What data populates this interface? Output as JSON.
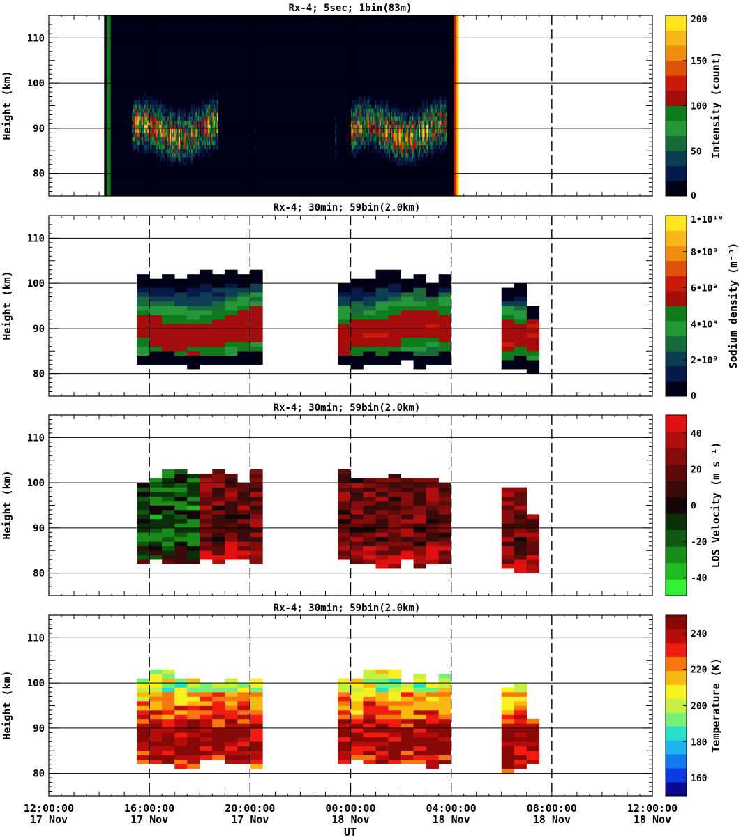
{
  "chart_data": {
    "type": "heatmap",
    "xlabel": "UT",
    "x_ticks": [
      {
        "time": "12:00:00",
        "date": "17 Nov"
      },
      {
        "time": "16:00:00",
        "date": "17 Nov"
      },
      {
        "time": "20:00:00",
        "date": "17 Nov"
      },
      {
        "time": "00:00:00",
        "date": "18 Nov"
      },
      {
        "time": "04:00:00",
        "date": "18 Nov"
      },
      {
        "time": "08:00:00",
        "date": "18 Nov"
      },
      {
        "time": "12:00:00",
        "date": "18 Nov"
      }
    ],
    "xlim_hours_ut": [
      12,
      36
    ],
    "grid": "dashed vertical lines every 4 h, horizontal lines every 10 km",
    "panels": [
      {
        "title": "Rx-4;  5sec; 1bin(83m)",
        "ylabel": "Height (km)",
        "ylim": [
          75,
          115
        ],
        "yticks": [
          "80",
          "90",
          "100",
          "110"
        ],
        "colorbar_label": "Intensity (count)",
        "colorbar_ticks": [
          "0",
          "50",
          "100",
          "150",
          "200"
        ],
        "colorbar_range": [
          0,
          200
        ],
        "colormap": [
          "#000018",
          "#061a4a",
          "#0c3e52",
          "#186a3a",
          "#25973b",
          "#117a1b",
          "#a50d0d",
          "#cc1a0a",
          "#e0520a",
          "#ee8c10",
          "#f6b818",
          "#ffe41c"
        ],
        "coverage_ut_hours": [
          [
            14.2,
            28.3
          ]
        ],
        "layer": {
          "peak_km": 89,
          "low_km": 82,
          "high_km": 97
        }
      },
      {
        "title": "Rx-4; 30min; 59bin(2.0km)",
        "ylabel": "Height (km)",
        "ylim": [
          75,
          115
        ],
        "yticks": [
          "80",
          "90",
          "100",
          "110"
        ],
        "colorbar_label": "Sodium density (m⁻³)",
        "colorbar_ticks": [
          "0",
          "2•10⁹",
          "4•10⁹",
          "6•10⁹",
          "8•10⁹",
          "1•10¹⁰"
        ],
        "colorbar_range": [
          0,
          10000000000
        ],
        "colormap": [
          "#000018",
          "#061a4a",
          "#0c3e52",
          "#186a3a",
          "#25973b",
          "#117a1b",
          "#a50d0d",
          "#cc1a0a",
          "#e0520a",
          "#ee8c10",
          "#f6b818",
          "#ffe41c"
        ],
        "coverage_ut_hours": [
          [
            15.5,
            20.5
          ],
          [
            23.5,
            28.0
          ],
          [
            30.0,
            31.5
          ]
        ]
      },
      {
        "title": "Rx-4; 30min; 59bin(2.0km)",
        "ylabel": "Height (km)",
        "ylim": [
          75,
          115
        ],
        "yticks": [
          "80",
          "90",
          "100",
          "110"
        ],
        "colorbar_label": "LOS Velocity (m s⁻¹)",
        "colorbar_ticks": [
          "-40",
          "-20",
          "0",
          "20",
          "40"
        ],
        "colorbar_range": [
          -50,
          50
        ],
        "colormap": [
          "#33ee33",
          "#22bb22",
          "#1a8c1a",
          "#105810",
          "#0a300a",
          "#120606",
          "#3a0a0a",
          "#5e0a0a",
          "#860c0c",
          "#b00e0e",
          "#e01010"
        ],
        "coverage_ut_hours": [
          [
            15.5,
            20.5
          ],
          [
            23.5,
            28.0
          ],
          [
            30.0,
            31.5
          ]
        ]
      },
      {
        "title": "Rx-4; 30min; 59bin(2.0km)",
        "ylabel": "Height (km)",
        "ylim": [
          75,
          115
        ],
        "yticks": [
          "80",
          "90",
          "100",
          "110"
        ],
        "colorbar_label": "Temperature (K)",
        "colorbar_ticks": [
          "160",
          "180",
          "200",
          "220",
          "240"
        ],
        "colorbar_range": [
          150,
          250
        ],
        "colormap": [
          "#0a0a8c",
          "#0a3ce8",
          "#1478f0",
          "#1eb4f0",
          "#28e0c8",
          "#78f078",
          "#c8f040",
          "#f8f020",
          "#f8b810",
          "#f87810",
          "#f01c10",
          "#b80c0c",
          "#880808"
        ],
        "coverage_ut_hours": [
          [
            15.5,
            20.5
          ],
          [
            23.5,
            28.0
          ],
          [
            30.0,
            31.5
          ]
        ]
      }
    ]
  }
}
